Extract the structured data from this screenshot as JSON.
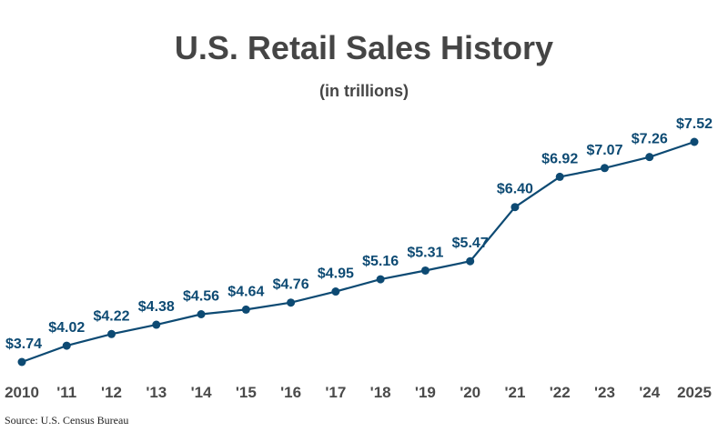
{
  "chart_data": {
    "type": "line",
    "title": "U.S. Retail Sales History",
    "subtitle": "(in trillions)",
    "categories": [
      "2010",
      "'11",
      "'12",
      "'13",
      "'14",
      "'15",
      "'16",
      "'17",
      "'18",
      "'19",
      "'20",
      "'21",
      "'22",
      "'23",
      "'24",
      "2025"
    ],
    "values": [
      3.74,
      4.02,
      4.22,
      4.38,
      4.56,
      4.64,
      4.76,
      4.95,
      5.16,
      5.31,
      5.47,
      6.4,
      6.92,
      7.07,
      7.26,
      7.52
    ],
    "data_labels": [
      "$3.74",
      "$4.02",
      "$4.22",
      "$4.38",
      "$4.56",
      "$4.64",
      "$4.76",
      "$4.95",
      "$5.16",
      "$5.31",
      "$5.47",
      "$6.40",
      "$6.92",
      "$7.07",
      "$7.26",
      "$7.52"
    ],
    "xlabel": "",
    "ylabel": "",
    "grid": false,
    "line_color": "#0d4a73",
    "source": "Source: U.S. Census Bureau"
  }
}
